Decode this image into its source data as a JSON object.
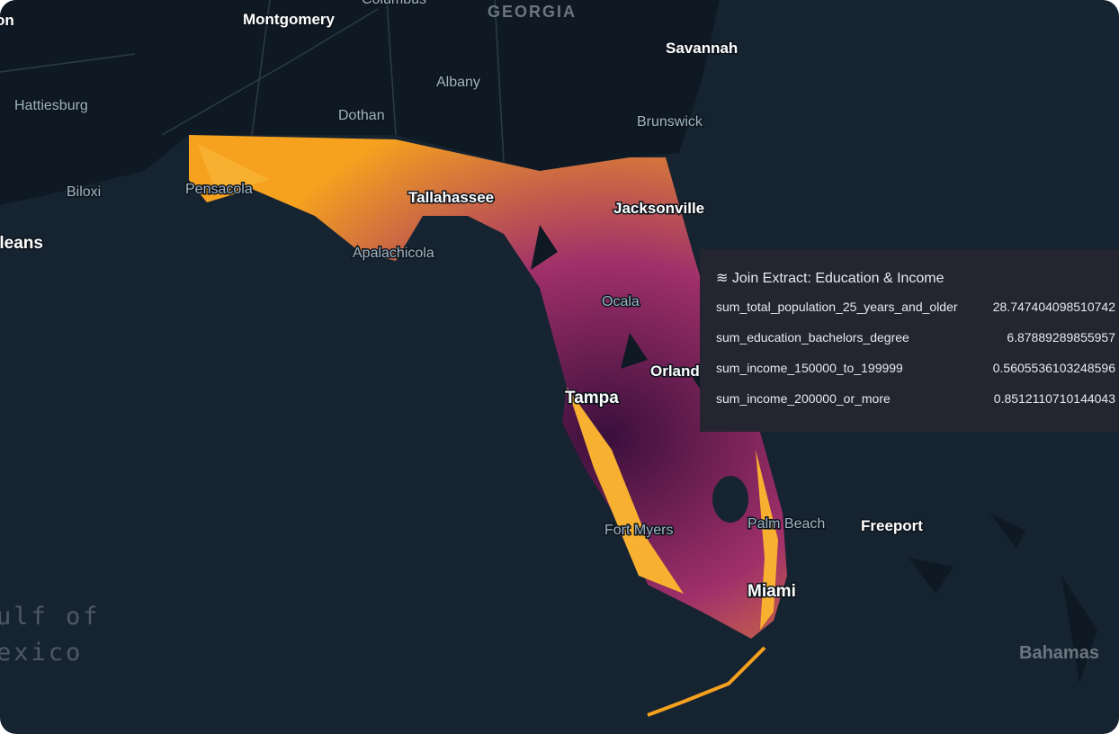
{
  "map": {
    "labels": [
      "on",
      "Montgomery",
      "Columbus",
      "GEORGIA",
      "Savannah",
      "Albany",
      "Hattiesburg",
      "Dothan",
      "Brunswick",
      "Biloxi",
      "Pensacola",
      "Tallahassee",
      "Jacksonville",
      "rleans",
      "Apalachicola",
      "Ocala",
      "Orland",
      "Tampa",
      "Fort Myers",
      "Palm Beach",
      "Freeport",
      "Miami",
      "ulf of",
      "exico",
      "Bahamas"
    ]
  },
  "tooltip": {
    "title": "Join Extract: Education & Income",
    "rows": [
      [
        "sum_total_population_25_years_and_older",
        "28.747404098510742"
      ],
      [
        "sum_education_bachelors_degree",
        "6.87889289855957"
      ],
      [
        "sum_income_150000_to_199999",
        "0.5605536103248596"
      ],
      [
        "sum_income_200000_or_more",
        "0.8512110710144043"
      ]
    ]
  }
}
